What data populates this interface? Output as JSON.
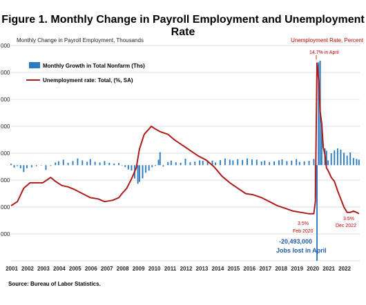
{
  "figure": {
    "title": "Figure 1. Monthly Change in Payroll Employment and Unemployment Rate",
    "source": "Source: Bureau of Labor Statistics."
  },
  "colors": {
    "bars": "#2b7bc0",
    "line": "#b01a1a",
    "grid": "#d0d0d0",
    "right_axis_text": "#c00000",
    "annotation": "#c00000",
    "annotation_blue": "#1f5aa8"
  },
  "chart_data": {
    "type": "bar",
    "title": "Figure 1. Monthly Change in Payroll Employment and Unemployment Rate",
    "left_axis_label": "Monthly Change in Payroll Employment, Thousands",
    "right_axis_label": "Unemployment Rate, Percent",
    "x_range": [
      2001,
      2023
    ],
    "x_ticks": [
      "2001",
      "2002",
      "2003",
      "2004",
      "2005",
      "2006",
      "2007",
      "2008",
      "2009",
      "2010",
      "2011",
      "2012",
      "2013",
      "2014",
      "2015",
      "2016",
      "2017",
      "2018",
      "2019",
      "2020",
      "2021",
      "2022"
    ],
    "left_ylim": [
      -4000,
      5000
    ],
    "right_ylim": [
      0,
      16
    ],
    "left_ticks": [
      "000",
      "000",
      "000",
      "000",
      "000",
      "000",
      "000",
      "000"
    ],
    "legend_position": "top-left",
    "series": [
      {
        "name": "Monthly Growth in Total Nonfarm (Ths)",
        "kind": "bar",
        "axis": "left",
        "note": "clipped at bottom; -20,493,000 lost in April 2020",
        "points": [
          [
            2001.0,
            60
          ],
          [
            2001.2,
            -100
          ],
          [
            2001.4,
            -40
          ],
          [
            2001.6,
            -130
          ],
          [
            2001.8,
            -290
          ],
          [
            2002.0,
            -130
          ],
          [
            2002.3,
            -90
          ],
          [
            2002.6,
            -40
          ],
          [
            2002.9,
            10
          ],
          [
            2003.2,
            -200
          ],
          [
            2003.5,
            -30
          ],
          [
            2003.8,
            110
          ],
          [
            2004.0,
            160
          ],
          [
            2004.3,
            230
          ],
          [
            2004.6,
            100
          ],
          [
            2004.9,
            170
          ],
          [
            2005.2,
            280
          ],
          [
            2005.5,
            200
          ],
          [
            2005.8,
            140
          ],
          [
            2006.0,
            250
          ],
          [
            2006.3,
            140
          ],
          [
            2006.6,
            110
          ],
          [
            2006.9,
            170
          ],
          [
            2007.2,
            100
          ],
          [
            2007.5,
            70
          ],
          [
            2007.8,
            90
          ],
          [
            2008.0,
            -20
          ],
          [
            2008.2,
            -80
          ],
          [
            2008.4,
            -180
          ],
          [
            2008.6,
            -220
          ],
          [
            2008.8,
            -560
          ],
          [
            2009.0,
            -780
          ],
          [
            2009.1,
            -700
          ],
          [
            2009.3,
            -550
          ],
          [
            2009.5,
            -320
          ],
          [
            2009.7,
            -230
          ],
          [
            2009.9,
            -90
          ],
          [
            2010.1,
            -30
          ],
          [
            2010.3,
            230
          ],
          [
            2010.4,
            540
          ],
          [
            2010.6,
            -60
          ],
          [
            2010.9,
            130
          ],
          [
            2011.1,
            190
          ],
          [
            2011.4,
            120
          ],
          [
            2011.7,
            100
          ],
          [
            2012.0,
            270
          ],
          [
            2012.3,
            120
          ],
          [
            2012.6,
            150
          ],
          [
            2012.9,
            200
          ],
          [
            2013.1,
            180
          ],
          [
            2013.4,
            200
          ],
          [
            2013.7,
            190
          ],
          [
            2013.9,
            110
          ],
          [
            2014.2,
            210
          ],
          [
            2014.5,
            280
          ],
          [
            2014.8,
            230
          ],
          [
            2015.0,
            200
          ],
          [
            2015.3,
            250
          ],
          [
            2015.6,
            220
          ],
          [
            2015.9,
            280
          ],
          [
            2016.2,
            240
          ],
          [
            2016.5,
            230
          ],
          [
            2016.8,
            150
          ],
          [
            2017.0,
            190
          ],
          [
            2017.3,
            130
          ],
          [
            2017.6,
            160
          ],
          [
            2017.9,
            200
          ],
          [
            2018.1,
            240
          ],
          [
            2018.4,
            170
          ],
          [
            2018.7,
            190
          ],
          [
            2019.0,
            250
          ],
          [
            2019.2,
            140
          ],
          [
            2019.5,
            160
          ],
          [
            2019.8,
            180
          ],
          [
            2020.1,
            260
          ],
          [
            2020.2,
            -1400
          ],
          [
            2020.3,
            -4000
          ],
          [
            2020.4,
            4300
          ],
          [
            2020.5,
            4700
          ],
          [
            2020.6,
            1700
          ],
          [
            2020.8,
            700
          ],
          [
            2020.9,
            600
          ],
          [
            2021.0,
            200
          ],
          [
            2021.2,
            500
          ],
          [
            2021.4,
            620
          ],
          [
            2021.6,
            700
          ],
          [
            2021.8,
            650
          ],
          [
            2022.0,
            520
          ],
          [
            2022.2,
            400
          ],
          [
            2022.4,
            530
          ],
          [
            2022.6,
            300
          ],
          [
            2022.8,
            260
          ],
          [
            2022.95,
            230
          ]
        ]
      },
      {
        "name": "Unemployment rate: Total, (%, SA)",
        "kind": "line",
        "axis": "right",
        "points": [
          [
            2001.0,
            4.1
          ],
          [
            2001.4,
            4.4
          ],
          [
            2001.8,
            5.4
          ],
          [
            2002.2,
            5.8
          ],
          [
            2002.6,
            5.8
          ],
          [
            2003.0,
            5.8
          ],
          [
            2003.5,
            6.2
          ],
          [
            2003.8,
            5.9
          ],
          [
            2004.2,
            5.6
          ],
          [
            2004.6,
            5.5
          ],
          [
            2005.0,
            5.3
          ],
          [
            2005.5,
            5.0
          ],
          [
            2006.0,
            4.7
          ],
          [
            2006.5,
            4.6
          ],
          [
            2006.9,
            4.4
          ],
          [
            2007.4,
            4.5
          ],
          [
            2007.8,
            4.7
          ],
          [
            2008.0,
            5.0
          ],
          [
            2008.3,
            5.4
          ],
          [
            2008.6,
            6.1
          ],
          [
            2008.9,
            6.9
          ],
          [
            2009.1,
            8.3
          ],
          [
            2009.4,
            9.4
          ],
          [
            2009.7,
            9.8
          ],
          [
            2009.85,
            10.0
          ],
          [
            2010.1,
            9.8
          ],
          [
            2010.4,
            9.6
          ],
          [
            2010.9,
            9.4
          ],
          [
            2011.3,
            9.0
          ],
          [
            2011.8,
            8.6
          ],
          [
            2012.3,
            8.2
          ],
          [
            2012.8,
            7.8
          ],
          [
            2013.3,
            7.5
          ],
          [
            2013.8,
            7.0
          ],
          [
            2014.3,
            6.3
          ],
          [
            2014.8,
            5.8
          ],
          [
            2015.3,
            5.4
          ],
          [
            2015.8,
            5.0
          ],
          [
            2016.3,
            4.9
          ],
          [
            2016.8,
            4.7
          ],
          [
            2017.3,
            4.4
          ],
          [
            2017.8,
            4.1
          ],
          [
            2018.3,
            3.9
          ],
          [
            2018.8,
            3.7
          ],
          [
            2019.3,
            3.6
          ],
          [
            2019.8,
            3.5
          ],
          [
            2020.1,
            3.5
          ],
          [
            2020.2,
            4.4
          ],
          [
            2020.3,
            14.7
          ],
          [
            2020.42,
            13.3
          ],
          [
            2020.5,
            11.1
          ],
          [
            2020.6,
            10.2
          ],
          [
            2020.7,
            8.4
          ],
          [
            2020.8,
            7.9
          ],
          [
            2020.9,
            6.9
          ],
          [
            2021.0,
            6.7
          ],
          [
            2021.2,
            6.2
          ],
          [
            2021.4,
            5.9
          ],
          [
            2021.6,
            5.2
          ],
          [
            2021.8,
            4.6
          ],
          [
            2022.0,
            4.0
          ],
          [
            2022.2,
            3.6
          ],
          [
            2022.4,
            3.6
          ],
          [
            2022.6,
            3.7
          ],
          [
            2022.8,
            3.6
          ],
          [
            2022.95,
            3.5
          ]
        ]
      }
    ],
    "annotations": [
      {
        "text": "14.7% in April",
        "color_key": "annotation"
      },
      {
        "text": "3.5%",
        "color_key": "annotation"
      },
      {
        "text": "Feb 2020",
        "color_key": "annotation"
      },
      {
        "text": "3.5%",
        "color_key": "annotation"
      },
      {
        "text": "Dec 2022",
        "color_key": "annotation"
      },
      {
        "text": "-20,493,000",
        "color_key": "annotation_blue"
      },
      {
        "text": "Jobs lost in April",
        "color_key": "annotation_blue"
      }
    ]
  }
}
